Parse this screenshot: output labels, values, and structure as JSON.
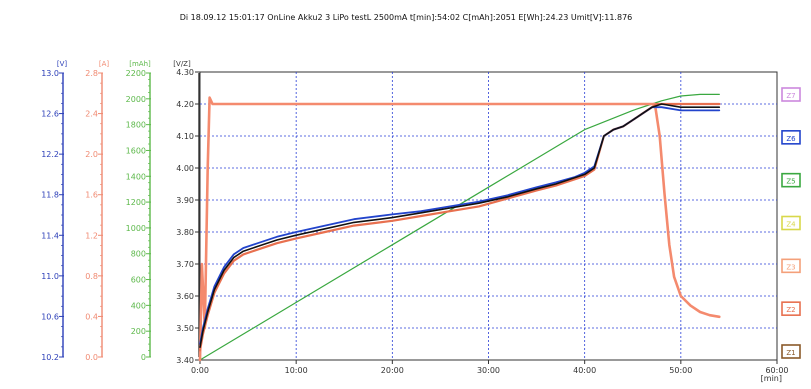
{
  "header": {
    "text": "Di 18.09.12 15:01:17 OnLine Akku2  3 LiPo   testL  2500mA  t[min]:54:02  C[mAh]:2051  E[Wh]:24.23  Umit[V]:11.876"
  },
  "colors": {
    "plot_border": "#333333",
    "grid": "#2a3fd6",
    "voltage_axis": "#2c3fb8",
    "current_axis": "#f08a72",
    "capacity_axis": "#5cb84a",
    "cell_axis": "#333333",
    "cell_black": "#111111",
    "cell_blue": "#2244cc",
    "cell_red": "#e8704f",
    "current_line": "#f48a6e",
    "capacity_line": "#3aa840"
  },
  "chart_data": {
    "type": "line",
    "xlabel": "[min]",
    "xlim": [
      0,
      60
    ],
    "x_ticks": [
      "0:00",
      "10:00",
      "20:00",
      "30:00",
      "40:00",
      "50:00",
      "60:00"
    ],
    "axes": {
      "voltage": {
        "unit": "[V]",
        "ticks": [
          "13.0",
          "12.6",
          "12.2",
          "11.8",
          "11.4",
          "11.0",
          "10.6",
          "10.2"
        ]
      },
      "current": {
        "unit": "[A]",
        "ticks": [
          "2.8",
          "2.4",
          "2.0",
          "1.6",
          "1.2",
          "0.8",
          "0.4",
          "0.0"
        ]
      },
      "capacity": {
        "unit": "[mAh]",
        "ticks": [
          "2200",
          "2000",
          "1800",
          "1600",
          "1400",
          "1200",
          "1000",
          "800",
          "600",
          "400",
          "200",
          "0"
        ]
      },
      "cell_voltage": {
        "unit": "[V/Z]",
        "ylim": [
          3.4,
          4.3
        ],
        "ticks": [
          "4.30",
          "4.20",
          "4.10",
          "4.00",
          "3.90",
          "3.80",
          "3.70",
          "3.60",
          "3.50",
          "3.40"
        ]
      }
    },
    "legend": [
      "Z7",
      "Z6",
      "Z5",
      "Z4",
      "Z3",
      "Z2",
      "Z1"
    ],
    "legend_colors": [
      "#cc88dd",
      "#2244cc",
      "#3aa840",
      "#d8d84a",
      "#f4a07a",
      "#e8704f",
      "#8a5a2a"
    ],
    "series": [
      {
        "key": "cell_black",
        "x": [
          0,
          0.3,
          0.8,
          1.5,
          2.5,
          3.5,
          4.5,
          6,
          8,
          10,
          13,
          16,
          20,
          23,
          26,
          29,
          32,
          35,
          37,
          39,
          40,
          41,
          42,
          43,
          44,
          45,
          46,
          47,
          48,
          50,
          52,
          54
        ],
        "values": [
          3.44,
          3.49,
          3.55,
          3.62,
          3.68,
          3.72,
          3.74,
          3.755,
          3.775,
          3.79,
          3.81,
          3.83,
          3.845,
          3.86,
          3.875,
          3.89,
          3.91,
          3.935,
          3.95,
          3.97,
          3.98,
          4.0,
          4.1,
          4.12,
          4.13,
          4.15,
          4.17,
          4.19,
          4.2,
          4.19,
          4.19,
          4.19
        ]
      },
      {
        "key": "cell_blue",
        "x": [
          0,
          0.3,
          0.8,
          1.5,
          2.5,
          3.5,
          4.5,
          6,
          8,
          10,
          13,
          16,
          20,
          23,
          26,
          29,
          32,
          35,
          37,
          39,
          40,
          41,
          42,
          43,
          44,
          45,
          46,
          47,
          48,
          50,
          52,
          54
        ],
        "values": [
          3.45,
          3.5,
          3.56,
          3.63,
          3.69,
          3.73,
          3.75,
          3.765,
          3.785,
          3.8,
          3.82,
          3.84,
          3.855,
          3.865,
          3.88,
          3.895,
          3.915,
          3.94,
          3.955,
          3.972,
          3.985,
          4.005,
          4.1,
          4.12,
          4.13,
          4.15,
          4.17,
          4.19,
          4.19,
          4.18,
          4.18,
          4.18
        ]
      },
      {
        "key": "cell_red",
        "x": [
          0,
          0.3,
          0.8,
          1.5,
          2.5,
          3.5,
          4.5,
          6,
          8,
          10,
          13,
          16,
          20,
          23,
          26,
          29,
          32,
          35,
          37,
          39,
          40,
          41,
          42,
          43,
          44,
          45,
          46,
          47,
          47.5,
          48.2,
          49,
          50,
          51,
          52,
          53,
          54
        ],
        "values": [
          3.43,
          3.48,
          3.54,
          3.61,
          3.67,
          3.71,
          3.73,
          3.745,
          3.765,
          3.78,
          3.8,
          3.82,
          3.835,
          3.85,
          3.865,
          3.88,
          3.905,
          3.93,
          3.945,
          3.965,
          3.975,
          3.995,
          4.1,
          4.12,
          4.13,
          4.15,
          4.17,
          4.19,
          4.2,
          4.2,
          4.2,
          4.2,
          4.2,
          4.2,
          4.2,
          4.2
        ]
      },
      {
        "key": "capacity_line",
        "x": [
          0,
          10,
          20,
          30,
          40,
          45,
          47,
          48,
          50,
          52,
          54
        ],
        "values": [
          3.4,
          3.58,
          3.76,
          3.94,
          4.12,
          4.18,
          4.2,
          4.21,
          4.225,
          4.23,
          4.23
        ]
      },
      {
        "key": "current_line",
        "x": [
          0,
          0.2,
          0.5,
          0.8,
          1.0,
          1.3,
          5,
          10,
          20,
          30,
          40,
          45,
          47.3,
          47.8,
          48.3,
          48.8,
          49.3,
          50,
          51,
          52,
          53,
          54
        ],
        "values": [
          3.4,
          3.7,
          3.5,
          4.0,
          4.22,
          4.2,
          4.2,
          4.2,
          4.2,
          4.2,
          4.2,
          4.2,
          4.2,
          4.1,
          3.92,
          3.76,
          3.66,
          3.6,
          3.57,
          3.55,
          3.54,
          3.535
        ]
      }
    ]
  }
}
